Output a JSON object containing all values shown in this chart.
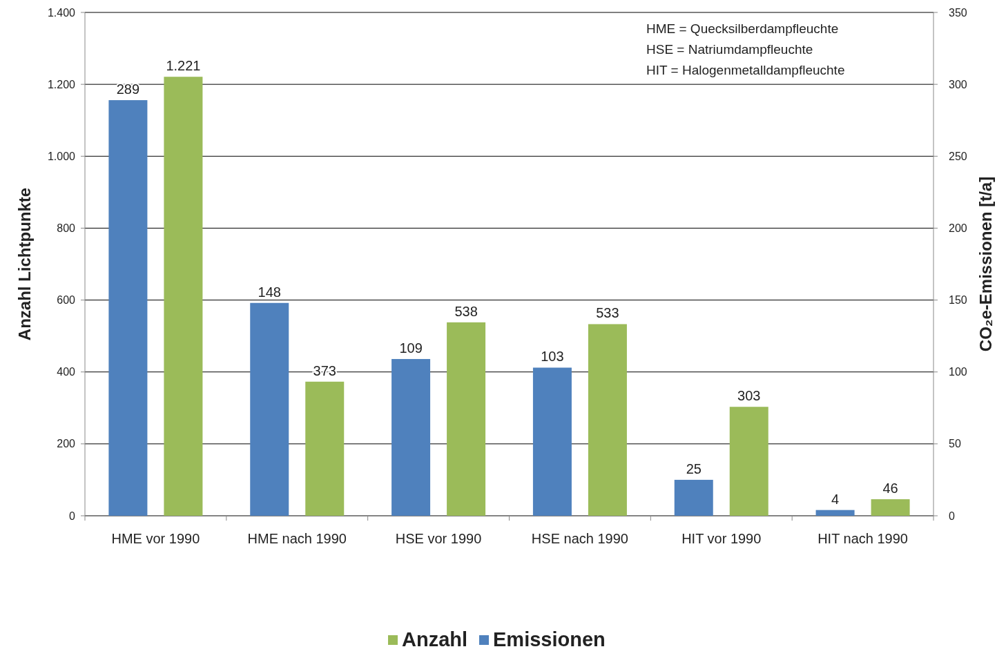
{
  "chart_data": {
    "type": "bar",
    "ylabel": "Anzahl Lichtpunkte",
    "y2label": "CO₂e-Emissionen [t/a]",
    "categories": [
      "HME vor 1990",
      "HME nach 1990",
      "HSE vor 1990",
      "HSE nach 1990",
      "HIT vor 1990",
      "HIT nach 1990"
    ],
    "series": [
      {
        "name": "Emissionen",
        "color": "#4f81bd",
        "axis": "y2",
        "values": [
          289,
          148,
          109,
          103,
          25,
          4
        ],
        "value_labels": [
          "289",
          "148",
          "109",
          "103",
          "25",
          "4"
        ]
      },
      {
        "name": "Anzahl",
        "color": "#9bbb59",
        "values": [
          1221,
          373,
          538,
          533,
          303,
          46
        ],
        "value_labels": [
          "1.221",
          "373",
          "538",
          "533",
          "303",
          "46"
        ]
      }
    ],
    "ylim": [
      0,
      1400
    ],
    "yticks": [
      0,
      200,
      400,
      600,
      800,
      {
        "value": 1000,
        "label": "1.000"
      },
      {
        "value": 1200,
        "label": "1.200"
      },
      {
        "value": 1400,
        "label": "1.400"
      }
    ],
    "y2lim": [
      0,
      350
    ],
    "y2ticks": [
      0,
      50,
      100,
      150,
      200,
      250,
      300,
      350
    ],
    "grid": "y",
    "legend": "bottom",
    "annotations": [
      "HME = Quecksilberdampfleuchte",
      "HSE = Natriumdampfleuchte",
      "HIT = Halogenmetalldampfleuchte"
    ]
  }
}
